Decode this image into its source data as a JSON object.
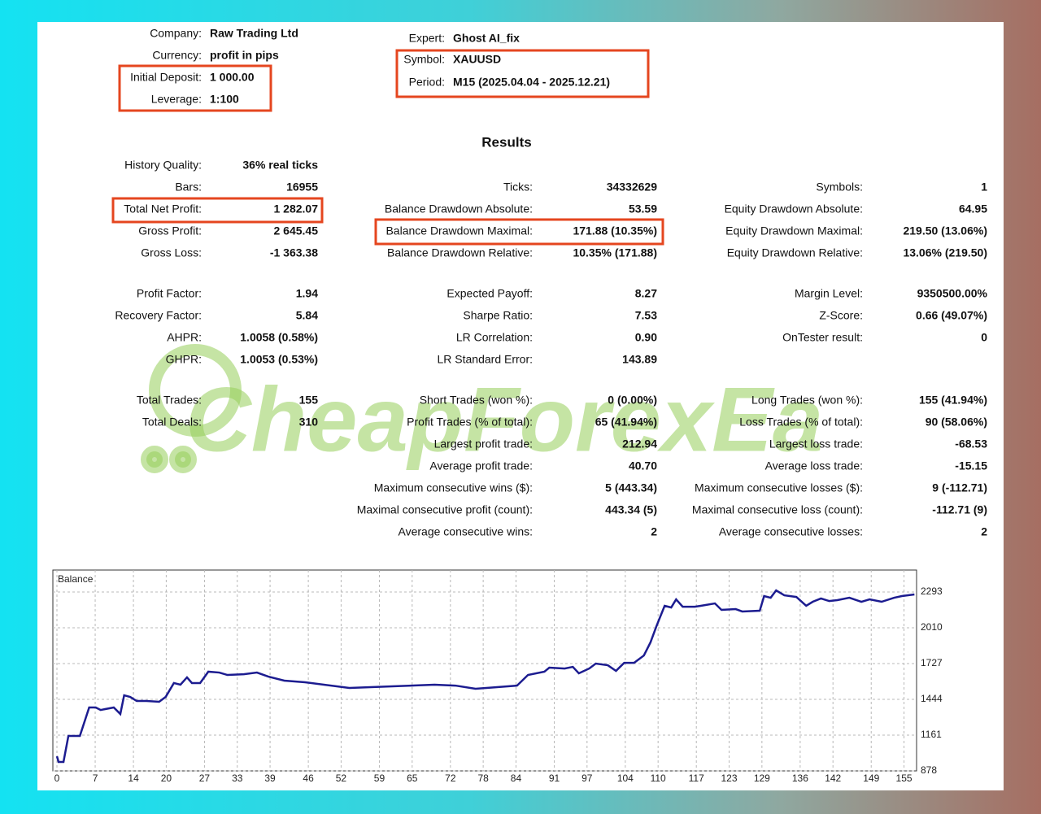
{
  "header": {
    "left": [
      {
        "label": "Company:",
        "value": "Raw Trading Ltd"
      },
      {
        "label": "Currency:",
        "value": "profit in pips"
      },
      {
        "label": "Initial Deposit:",
        "value": "1 000.00"
      },
      {
        "label": "Leverage:",
        "value": "1:100"
      }
    ],
    "right": [
      {
        "label": "Expert:",
        "value": "Ghost AI_fix"
      },
      {
        "label": "Symbol:",
        "value": "XAUUSD"
      },
      {
        "label": "Period:",
        "value": "M15 (2025.04.04 - 2025.12.21)"
      }
    ]
  },
  "results_title": "Results",
  "results": {
    "blocks": [
      [
        [
          {
            "label": "History Quality:",
            "value": "36% real ticks"
          },
          null,
          null
        ],
        [
          {
            "label": "Bars:",
            "value": "16955"
          },
          {
            "label": "Ticks:",
            "value": "34332629"
          },
          {
            "label": "Symbols:",
            "value": "1"
          }
        ],
        [
          {
            "label": "Total Net Profit:",
            "value": "1 282.07"
          },
          {
            "label": "Balance Drawdown Absolute:",
            "value": "53.59"
          },
          {
            "label": "Equity Drawdown Absolute:",
            "value": "64.95"
          }
        ],
        [
          {
            "label": "Gross Profit:",
            "value": "2 645.45"
          },
          {
            "label": "Balance Drawdown Maximal:",
            "value": "171.88 (10.35%)"
          },
          {
            "label": "Equity Drawdown Maximal:",
            "value": "219.50 (13.06%)"
          }
        ],
        [
          {
            "label": "Gross Loss:",
            "value": "-1 363.38"
          },
          {
            "label": "Balance Drawdown Relative:",
            "value": "10.35% (171.88)"
          },
          {
            "label": "Equity Drawdown Relative:",
            "value": "13.06% (219.50)"
          }
        ]
      ],
      [
        [
          {
            "label": "Profit Factor:",
            "value": "1.94"
          },
          {
            "label": "Expected Payoff:",
            "value": "8.27"
          },
          {
            "label": "Margin Level:",
            "value": "9350500.00%"
          }
        ],
        [
          {
            "label": "Recovery Factor:",
            "value": "5.84"
          },
          {
            "label": "Sharpe Ratio:",
            "value": "7.53"
          },
          {
            "label": "Z-Score:",
            "value": "0.66 (49.07%)"
          }
        ],
        [
          {
            "label": "AHPR:",
            "value": "1.0058 (0.58%)"
          },
          {
            "label": "LR Correlation:",
            "value": "0.90"
          },
          {
            "label": "OnTester result:",
            "value": "0"
          }
        ],
        [
          {
            "label": "GHPR:",
            "value": "1.0053 (0.53%)"
          },
          {
            "label": "LR Standard Error:",
            "value": "143.89"
          },
          null
        ]
      ],
      [
        [
          {
            "label": "Total Trades:",
            "value": "155"
          },
          {
            "label": "Short Trades (won %):",
            "value": "0 (0.00%)"
          },
          {
            "label": "Long Trades (won %):",
            "value": "155 (41.94%)"
          }
        ],
        [
          {
            "label": "Total Deals:",
            "value": "310"
          },
          {
            "label": "Profit Trades (% of total):",
            "value": "65 (41.94%)"
          },
          {
            "label": "Loss Trades (% of total):",
            "value": "90 (58.06%)"
          }
        ],
        [
          null,
          {
            "label": "Largest profit trade:",
            "value": "212.94"
          },
          {
            "label": "Largest loss trade:",
            "value": "-68.53"
          }
        ],
        [
          null,
          {
            "label": "Average profit trade:",
            "value": "40.70"
          },
          {
            "label": "Average loss trade:",
            "value": "-15.15"
          }
        ],
        [
          null,
          {
            "label": "Maximum consecutive wins ($):",
            "value": "5 (443.34)"
          },
          {
            "label": "Maximum consecutive losses ($):",
            "value": "9 (-112.71)"
          }
        ],
        [
          null,
          {
            "label": "Maximal consecutive profit (count):",
            "value": "443.34 (5)"
          },
          {
            "label": "Maximal consecutive loss (count):",
            "value": "-112.71 (9)"
          }
        ],
        [
          null,
          {
            "label": "Average consecutive wins:",
            "value": "2"
          },
          {
            "label": "Average consecutive losses:",
            "value": "2"
          }
        ]
      ]
    ]
  },
  "watermark": "CheapForexEa",
  "chart_data": {
    "type": "line",
    "title": "Balance",
    "color": "#1c1c90",
    "grid": true,
    "x": [
      0,
      0.3,
      1.2,
      2.1,
      4.2,
      5.9,
      7.1,
      8.0,
      10.4,
      11.6,
      12.3,
      13.4,
      14.6,
      16.4,
      18.7,
      19.9,
      21.4,
      22.6,
      23.8,
      24.7,
      26.2,
      27.7,
      29.7,
      31.2,
      34.2,
      36.6,
      38.7,
      41.6,
      45.4,
      53.5,
      69.1,
      72.9,
      76.6,
      80.3,
      84.2,
      86.2,
      89.2,
      90.1,
      92.9,
      94.4,
      95.5,
      97.4,
      98.6,
      100.8,
      102.3,
      103.8,
      105.6,
      107.4,
      108.6,
      109.7,
      111.2,
      112.4,
      113.3,
      114.5,
      116.7,
      117.8,
      120.4,
      121.6,
      124.2,
      125.4,
      128.6,
      129.4,
      130.6,
      131.6,
      133.1,
      135.3,
      137.1,
      138.3,
      139.8,
      141.3,
      142.8,
      145.0,
      147.2,
      148.7,
      150.9,
      153.2,
      154.6,
      156.9
    ],
    "values": [
      994,
      949,
      949,
      1155,
      1155,
      1380,
      1380,
      1360,
      1380,
      1328,
      1476,
      1463,
      1431,
      1431,
      1425,
      1463,
      1573,
      1560,
      1618,
      1573,
      1573,
      1663,
      1656,
      1637,
      1643,
      1656,
      1624,
      1592,
      1579,
      1534,
      1560,
      1553,
      1528,
      1540,
      1553,
      1637,
      1663,
      1695,
      1688,
      1701,
      1650,
      1688,
      1727,
      1714,
      1669,
      1733,
      1733,
      1791,
      1894,
      2023,
      2184,
      2171,
      2235,
      2177,
      2177,
      2184,
      2203,
      2152,
      2158,
      2139,
      2145,
      2261,
      2248,
      2306,
      2267,
      2254,
      2184,
      2216,
      2242,
      2222,
      2229,
      2248,
      2216,
      2235,
      2216,
      2248,
      2261,
      2274
    ],
    "xlim": [
      0,
      157
    ],
    "xticks": [
      0,
      7,
      14,
      20,
      27,
      33,
      39,
      46,
      52,
      59,
      65,
      72,
      78,
      84,
      91,
      97,
      104,
      110,
      117,
      123,
      129,
      136,
      142,
      149,
      155
    ],
    "ylim": [
      878,
      2467
    ],
    "yticks": [
      878,
      1161,
      1444,
      1727,
      2010,
      2293
    ]
  }
}
